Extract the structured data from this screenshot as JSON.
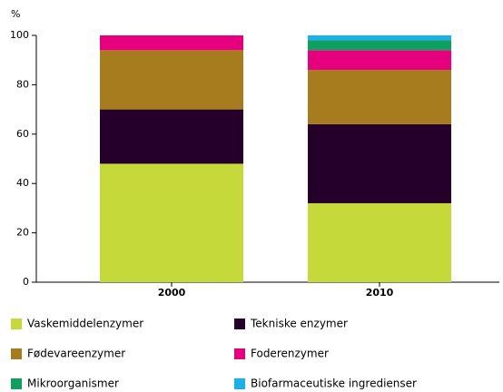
{
  "chart_data": {
    "type": "stacked_bar",
    "y_unit_label": "%",
    "categories": [
      "2000",
      "2010"
    ],
    "series": [
      {
        "name": "Vaskemiddelenzymer",
        "color": "#c5d93a",
        "values": [
          48,
          32
        ]
      },
      {
        "name": "Tekniske enzymer",
        "color": "#24002a",
        "values": [
          22,
          32
        ]
      },
      {
        "name": "Fødevareenzymer",
        "color": "#a67c1e",
        "values": [
          24,
          22
        ]
      },
      {
        "name": "Foderenzymer",
        "color": "#e6007e",
        "values": [
          6,
          8
        ]
      },
      {
        "name": "Mikroorganismer",
        "color": "#0fa060",
        "values": [
          0,
          4
        ]
      },
      {
        "name": "Biofarmaceutiske ingredienser",
        "color": "#1ab0e8",
        "values": [
          0,
          2
        ]
      }
    ],
    "ylim": [
      0,
      100
    ],
    "yticks": [
      0,
      20,
      40,
      60,
      80,
      100
    ]
  }
}
